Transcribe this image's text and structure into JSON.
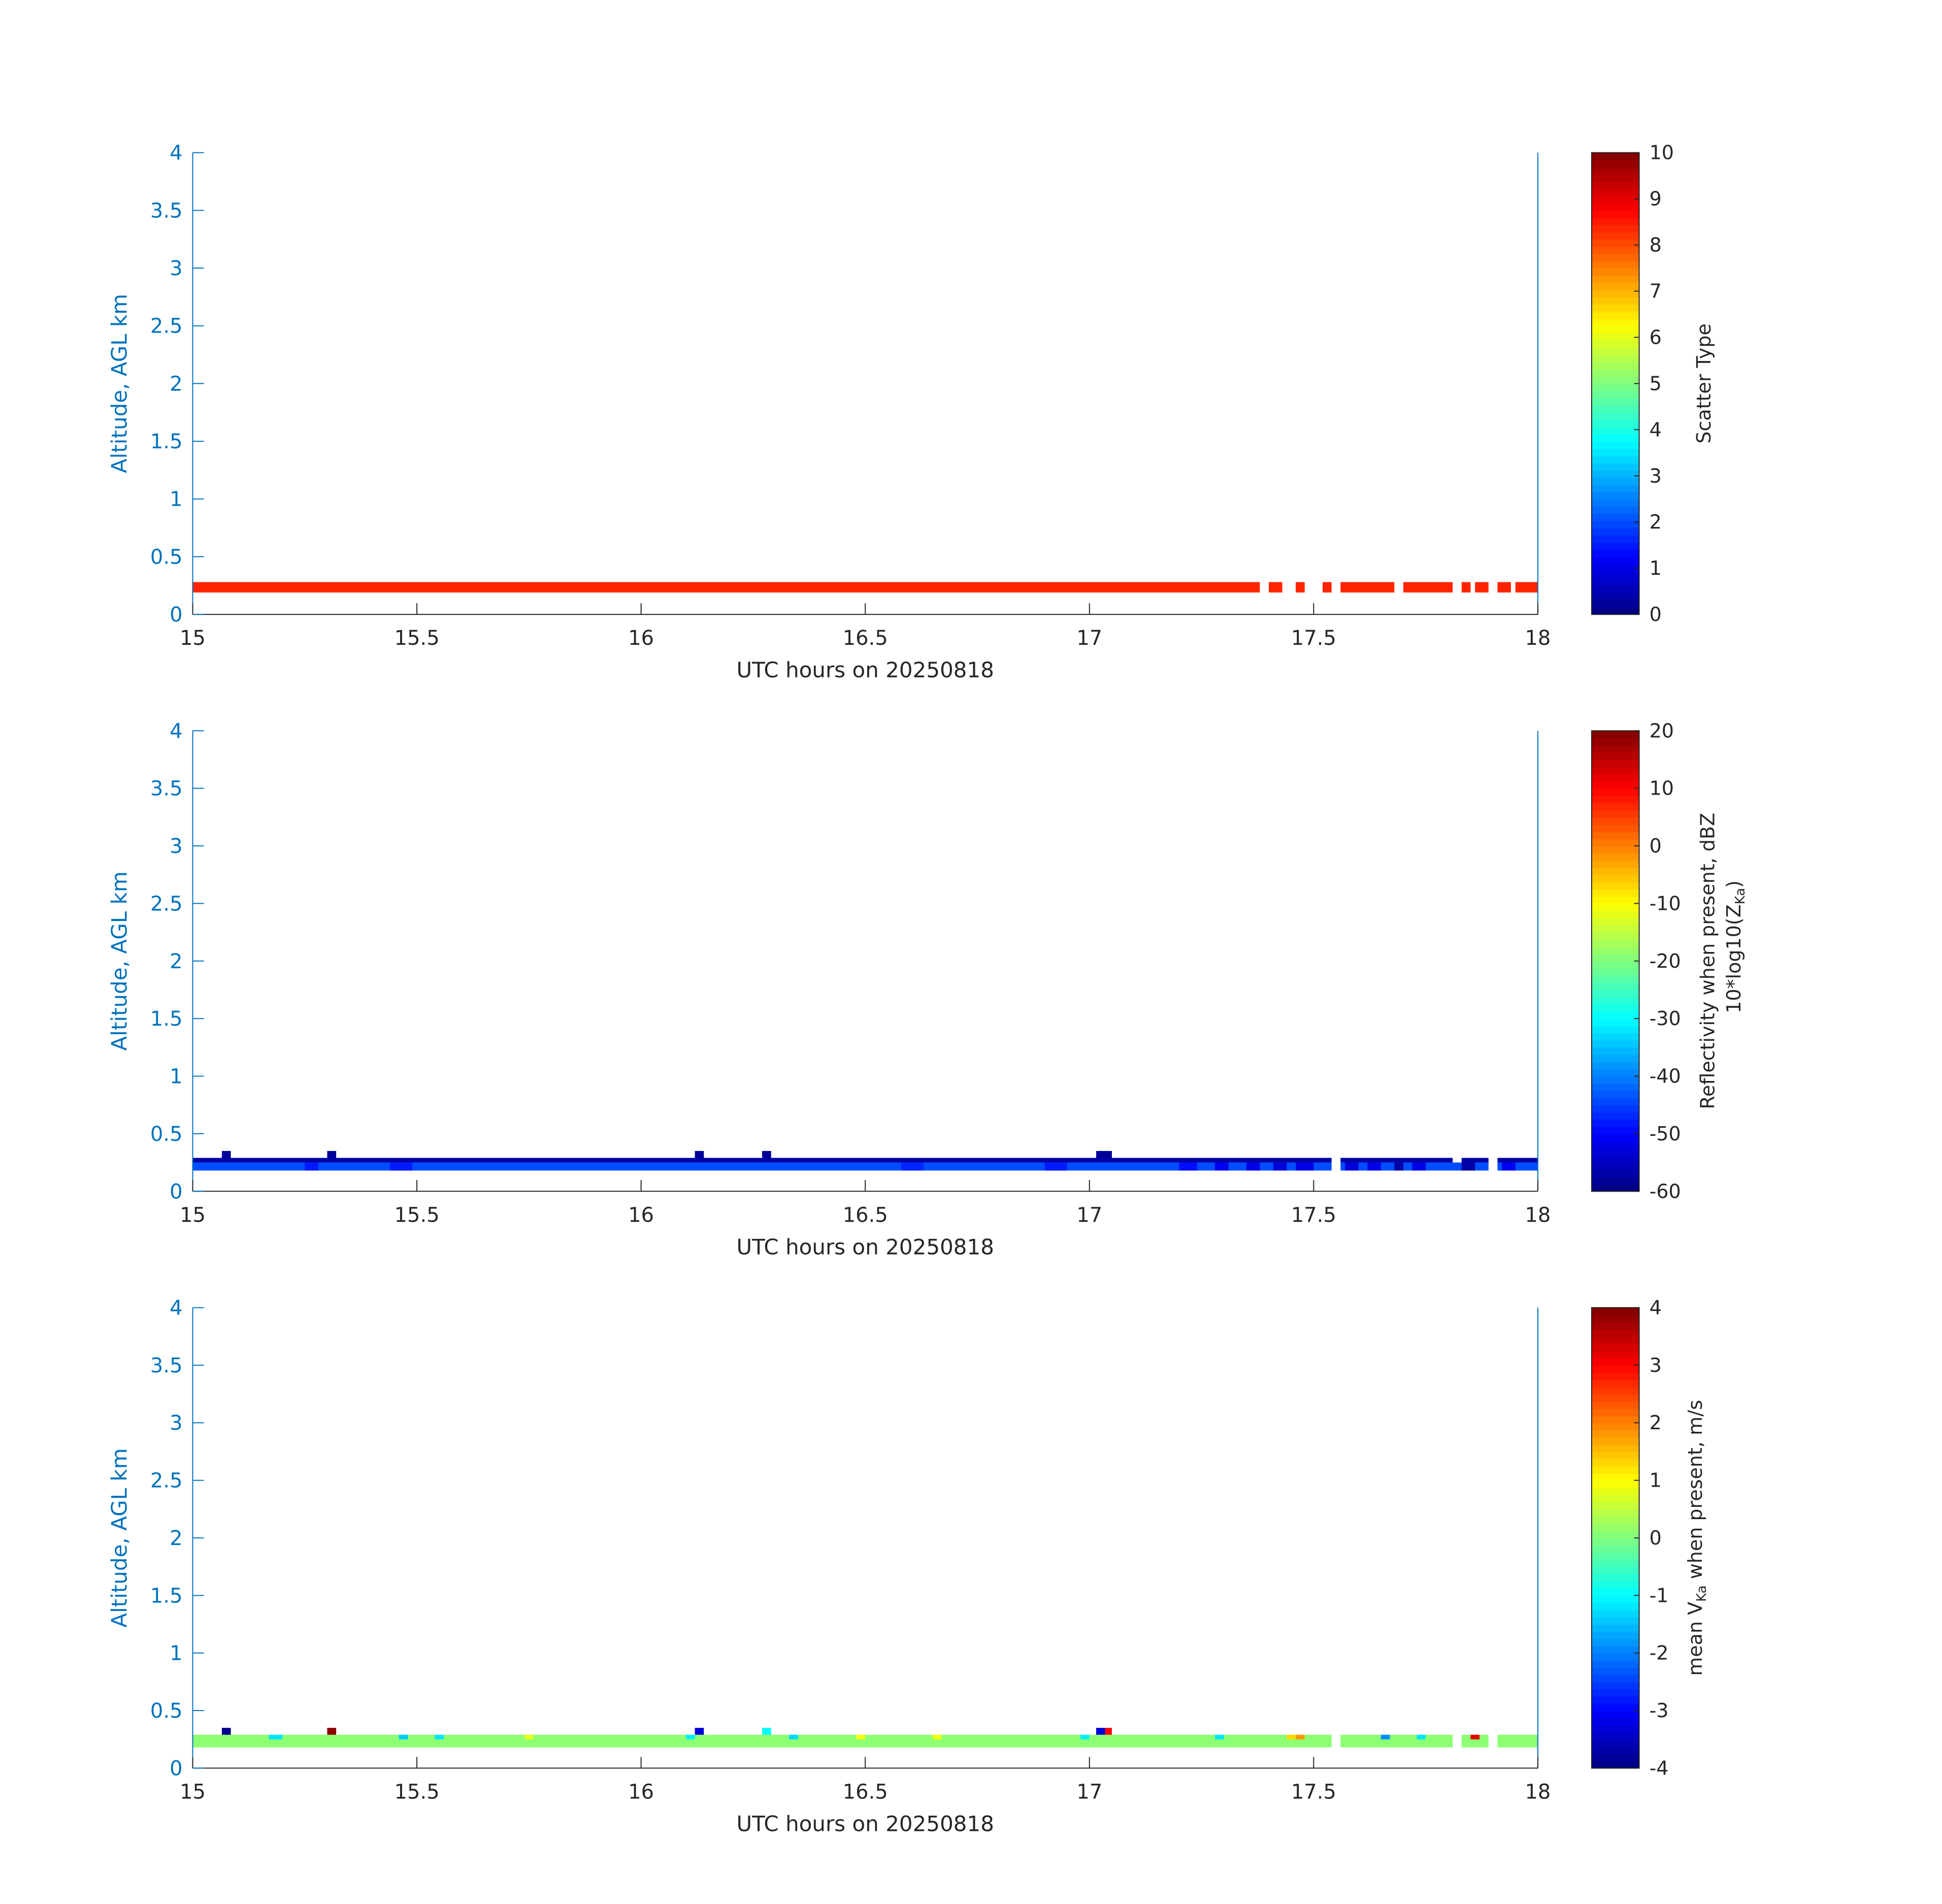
{
  "chart_data": [
    {
      "type": "heatmap",
      "xlabel": "UTC hours on 20250818",
      "ylabel": "Altitude, AGL km",
      "xlim": [
        15,
        18
      ],
      "ylim": [
        0,
        4
      ],
      "xticks": [
        "15",
        "15.5",
        "16",
        "16.5",
        "17",
        "17.5",
        "18"
      ],
      "yticks": [
        "0",
        "0.5",
        "1",
        "1.5",
        "2",
        "2.5",
        "3",
        "3.5",
        "4"
      ],
      "colorbar": {
        "label": "Scatter Type",
        "range": [
          0,
          10
        ],
        "ticks": [
          "0",
          "1",
          "2",
          "3",
          "4",
          "5",
          "6",
          "7",
          "8",
          "9",
          "10"
        ],
        "colormap": "jet"
      },
      "layers": [
        {
          "name": "base",
          "altitude_range": [
            0.19,
            0.28
          ],
          "value": 8.4,
          "gaps": [
            [
              17.38,
              17.4
            ],
            [
              17.43,
              17.46
            ],
            [
              17.48,
              17.52
            ],
            [
              17.54,
              17.56
            ],
            [
              17.68,
              17.7
            ],
            [
              17.81,
              17.83
            ],
            [
              17.85,
              17.86
            ],
            [
              17.89,
              17.91
            ],
            [
              17.94,
              17.95
            ]
          ]
        }
      ],
      "cells": []
    },
    {
      "type": "heatmap",
      "xlabel": "UTC hours on 20250818",
      "ylabel": "Altitude, AGL km",
      "xlim": [
        15,
        18
      ],
      "ylim": [
        0,
        4
      ],
      "xticks": [
        "15",
        "15.5",
        "16",
        "16.5",
        "17",
        "17.5",
        "18"
      ],
      "yticks": [
        "0",
        "0.5",
        "1",
        "1.5",
        "2",
        "2.5",
        "3",
        "3.5",
        "4"
      ],
      "colorbar": {
        "label": "Reflectivity when present, dBZ",
        "label2": "10*log10(Z",
        "label2_sub": "Ka",
        "label2_end": ")",
        "range": [
          -60,
          20
        ],
        "ticks": [
          "-60",
          "-50",
          "-40",
          "-30",
          "-20",
          "-10",
          "0",
          "10",
          "20"
        ],
        "colormap": "jet"
      },
      "layers": [
        {
          "name": "upper",
          "altitude_range": [
            0.25,
            0.29
          ],
          "value": -57,
          "gaps": [
            [
              17.54,
              17.56
            ],
            [
              17.81,
              17.83
            ],
            [
              17.89,
              17.91
            ]
          ]
        },
        {
          "name": "lower",
          "altitude_range": [
            0.18,
            0.25
          ],
          "value": -44,
          "gaps": [
            [
              17.54,
              17.56
            ],
            [
              17.89,
              17.91
            ]
          ]
        }
      ],
      "cells": [
        {
          "t0": 15.065,
          "t1": 15.085,
          "a0": 0.29,
          "a1": 0.35,
          "value": -58
        },
        {
          "t0": 15.3,
          "t1": 15.32,
          "a0": 0.29,
          "a1": 0.35,
          "value": -58
        },
        {
          "t0": 16.12,
          "t1": 16.14,
          "a0": 0.29,
          "a1": 0.35,
          "value": -58
        },
        {
          "t0": 16.27,
          "t1": 16.29,
          "a0": 0.29,
          "a1": 0.35,
          "value": -58
        },
        {
          "t0": 17.015,
          "t1": 17.05,
          "a0": 0.29,
          "a1": 0.35,
          "value": -58
        },
        {
          "t0": 15.25,
          "t1": 15.28,
          "a0": 0.18,
          "a1": 0.25,
          "value": -48
        },
        {
          "t0": 15.44,
          "t1": 15.49,
          "a0": 0.18,
          "a1": 0.25,
          "value": -48
        },
        {
          "t0": 16.58,
          "t1": 16.63,
          "a0": 0.18,
          "a1": 0.25,
          "value": -47
        },
        {
          "t0": 16.9,
          "t1": 16.95,
          "a0": 0.18,
          "a1": 0.25,
          "value": -48
        },
        {
          "t0": 17.2,
          "t1": 17.24,
          "a0": 0.18,
          "a1": 0.25,
          "value": -49
        },
        {
          "t0": 17.28,
          "t1": 17.31,
          "a0": 0.18,
          "a1": 0.25,
          "value": -51
        },
        {
          "t0": 17.35,
          "t1": 17.38,
          "a0": 0.18,
          "a1": 0.25,
          "value": -52
        },
        {
          "t0": 17.41,
          "t1": 17.44,
          "a0": 0.18,
          "a1": 0.25,
          "value": -53
        },
        {
          "t0": 17.46,
          "t1": 17.5,
          "a0": 0.18,
          "a1": 0.25,
          "value": -52
        },
        {
          "t0": 17.57,
          "t1": 17.6,
          "a0": 0.18,
          "a1": 0.25,
          "value": -53
        },
        {
          "t0": 17.62,
          "t1": 17.65,
          "a0": 0.18,
          "a1": 0.25,
          "value": -52
        },
        {
          "t0": 17.68,
          "t1": 17.7,
          "a0": 0.18,
          "a1": 0.25,
          "value": -57
        },
        {
          "t0": 17.72,
          "t1": 17.75,
          "a0": 0.18,
          "a1": 0.25,
          "value": -52
        },
        {
          "t0": 17.83,
          "t1": 17.86,
          "a0": 0.18,
          "a1": 0.25,
          "value": -57
        },
        {
          "t0": 17.92,
          "t1": 17.95,
          "a0": 0.18,
          "a1": 0.25,
          "value": -51
        }
      ]
    },
    {
      "type": "heatmap",
      "xlabel": "UTC hours on 20250818",
      "ylabel": "Altitude, AGL km",
      "xlim": [
        15,
        18
      ],
      "ylim": [
        0,
        4
      ],
      "xticks": [
        "15",
        "15.5",
        "16",
        "16.5",
        "17",
        "17.5",
        "18"
      ],
      "yticks": [
        "0",
        "0.5",
        "1",
        "1.5",
        "2",
        "2.5",
        "3",
        "3.5",
        "4"
      ],
      "colorbar": {
        "label": "mean V",
        "label_sub": "Ka",
        "label_end": " when present, m/s",
        "range": [
          -4,
          4
        ],
        "ticks": [
          "-4",
          "-3",
          "-2",
          "-1",
          "0",
          "1",
          "2",
          "3",
          "4"
        ],
        "colormap": "jet"
      },
      "layers": [
        {
          "name": "velocity",
          "altitude_range": [
            0.18,
            0.29
          ],
          "value": 0.1,
          "gaps": [
            [
              17.54,
              17.56
            ],
            [
              17.81,
              17.83
            ],
            [
              17.89,
              17.91
            ]
          ]
        }
      ],
      "cells": [
        {
          "t0": 15.065,
          "t1": 15.085,
          "a0": 0.29,
          "a1": 0.35,
          "value": -3.9
        },
        {
          "t0": 15.3,
          "t1": 15.32,
          "a0": 0.29,
          "a1": 0.35,
          "value": 3.9
        },
        {
          "t0": 16.12,
          "t1": 16.14,
          "a0": 0.29,
          "a1": 0.35,
          "value": -3.3
        },
        {
          "t0": 16.27,
          "t1": 16.29,
          "a0": 0.29,
          "a1": 0.35,
          "value": -1.0
        },
        {
          "t0": 17.015,
          "t1": 17.035,
          "a0": 0.29,
          "a1": 0.35,
          "value": -3.3
        },
        {
          "t0": 17.035,
          "t1": 17.05,
          "a0": 0.29,
          "a1": 0.35,
          "value": 3.0
        },
        {
          "t0": 15.17,
          "t1": 15.2,
          "a0": 0.25,
          "a1": 0.29,
          "value": -1.2
        },
        {
          "t0": 15.46,
          "t1": 15.48,
          "a0": 0.25,
          "a1": 0.29,
          "value": -1.4
        },
        {
          "t0": 15.54,
          "t1": 15.56,
          "a0": 0.25,
          "a1": 0.29,
          "value": -1.2
        },
        {
          "t0": 15.74,
          "t1": 15.76,
          "a0": 0.25,
          "a1": 0.29,
          "value": 0.8
        },
        {
          "t0": 16.1,
          "t1": 16.12,
          "a0": 0.25,
          "a1": 0.29,
          "value": -1.1
        },
        {
          "t0": 16.33,
          "t1": 16.35,
          "a0": 0.25,
          "a1": 0.29,
          "value": -1.3
        },
        {
          "t0": 16.48,
          "t1": 16.5,
          "a0": 0.25,
          "a1": 0.29,
          "value": 0.9
        },
        {
          "t0": 16.65,
          "t1": 16.67,
          "a0": 0.25,
          "a1": 0.29,
          "value": 0.9
        },
        {
          "t0": 16.98,
          "t1": 17.0,
          "a0": 0.25,
          "a1": 0.29,
          "value": -1.1
        },
        {
          "t0": 17.28,
          "t1": 17.3,
          "a0": 0.25,
          "a1": 0.29,
          "value": -1.2
        },
        {
          "t0": 17.44,
          "t1": 17.46,
          "a0": 0.25,
          "a1": 0.29,
          "value": 1.3
        },
        {
          "t0": 17.46,
          "t1": 17.48,
          "a0": 0.25,
          "a1": 0.29,
          "value": 1.8
        },
        {
          "t0": 17.65,
          "t1": 17.67,
          "a0": 0.25,
          "a1": 0.29,
          "value": -1.9
        },
        {
          "t0": 17.73,
          "t1": 17.75,
          "a0": 0.25,
          "a1": 0.29,
          "value": -1.2
        },
        {
          "t0": 17.85,
          "t1": 17.87,
          "a0": 0.25,
          "a1": 0.29,
          "value": 3.2
        }
      ]
    }
  ]
}
